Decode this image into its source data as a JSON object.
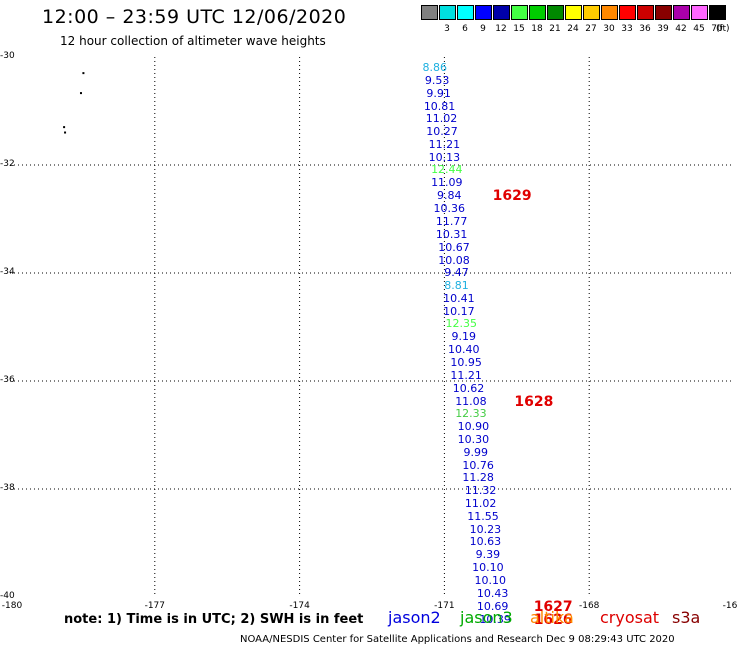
{
  "header": {
    "title": "12:00 – 23:59 UTC 12/06/2020",
    "subtitle": "12 hour collection of altimeter wave heights"
  },
  "color_scale": {
    "unit": "(ft)",
    "items": [
      {
        "label": "",
        "color": "#808080"
      },
      {
        "label": "3",
        "color": "#00e0e0"
      },
      {
        "label": "6",
        "color": "#00ffff"
      },
      {
        "label": "9",
        "color": "#0000ff"
      },
      {
        "label": "12",
        "color": "#0000aa"
      },
      {
        "label": "15",
        "color": "#44ff44"
      },
      {
        "label": "18",
        "color": "#00cc00"
      },
      {
        "label": "21",
        "color": "#008800"
      },
      {
        "label": "24",
        "color": "#ffff00"
      },
      {
        "label": "27",
        "color": "#ffcc00"
      },
      {
        "label": "30",
        "color": "#ff8800"
      },
      {
        "label": "33",
        "color": "#ff0000"
      },
      {
        "label": "36",
        "color": "#cc0000"
      },
      {
        "label": "39",
        "color": "#880000"
      },
      {
        "label": "42",
        "color": "#aa00aa"
      },
      {
        "label": "45",
        "color": "#ff66ff"
      },
      {
        "label": "70",
        "color": "#000000"
      }
    ]
  },
  "map": {
    "lat_range": [
      -40,
      -30
    ],
    "lon_range": [
      -180,
      -165
    ],
    "lat_ticks": [
      "-30",
      "-32",
      "-34",
      "-36",
      "-38",
      "-40"
    ],
    "lon_ticks": [
      "-180",
      "-177",
      "-174",
      "-171",
      "-168",
      "-16"
    ],
    "points": [
      {
        "lat": -30.2,
        "lon": -171.2,
        "value": "8.86",
        "color": "#1fb0e0"
      },
      {
        "lat": -30.44,
        "lon": -171.15,
        "value": "9.53",
        "color": "#0000cc"
      },
      {
        "lat": -30.68,
        "lon": -171.12,
        "value": "9.91",
        "color": "#0000cc"
      },
      {
        "lat": -30.92,
        "lon": -171.1,
        "value": "10.81",
        "color": "#0000cc"
      },
      {
        "lat": -31.15,
        "lon": -171.06,
        "value": "11.02",
        "color": "#0000cc"
      },
      {
        "lat": -31.39,
        "lon": -171.05,
        "value": "10.27",
        "color": "#0000cc"
      },
      {
        "lat": -31.63,
        "lon": -171.0,
        "value": "11.21",
        "color": "#0000cc"
      },
      {
        "lat": -31.87,
        "lon": -171.0,
        "value": "10.13",
        "color": "#0000cc"
      },
      {
        "lat": -32.1,
        "lon": -170.95,
        "value": "12.44",
        "color": "#44ff44"
      },
      {
        "lat": -32.34,
        "lon": -170.95,
        "value": "11.09",
        "color": "#0000cc"
      },
      {
        "lat": -32.58,
        "lon": -170.9,
        "value": "9.84",
        "color": "#0000cc"
      },
      {
        "lat": -32.82,
        "lon": -170.9,
        "value": "10.36",
        "color": "#0000cc"
      },
      {
        "lat": -33.05,
        "lon": -170.85,
        "value": "11.77",
        "color": "#0000cc"
      },
      {
        "lat": -33.29,
        "lon": -170.85,
        "value": "10.31",
        "color": "#0000cc"
      },
      {
        "lat": -33.53,
        "lon": -170.8,
        "value": "10.67",
        "color": "#0000cc"
      },
      {
        "lat": -33.77,
        "lon": -170.8,
        "value": "10.08",
        "color": "#0000cc"
      },
      {
        "lat": -34.0,
        "lon": -170.75,
        "value": "9.47",
        "color": "#0000cc"
      },
      {
        "lat": -34.24,
        "lon": -170.75,
        "value": "8.81",
        "color": "#1fb0e0"
      },
      {
        "lat": -34.48,
        "lon": -170.7,
        "value": "10.41",
        "color": "#0000cc"
      },
      {
        "lat": -34.72,
        "lon": -170.7,
        "value": "10.17",
        "color": "#0000cc"
      },
      {
        "lat": -34.95,
        "lon": -170.65,
        "value": "12.35",
        "color": "#44ff44"
      },
      {
        "lat": -35.19,
        "lon": -170.6,
        "value": "9.19",
        "color": "#0000cc"
      },
      {
        "lat": -35.43,
        "lon": -170.6,
        "value": "10.40",
        "color": "#0000cc"
      },
      {
        "lat": -35.67,
        "lon": -170.55,
        "value": "10.95",
        "color": "#0000cc"
      },
      {
        "lat": -35.9,
        "lon": -170.55,
        "value": "11.21",
        "color": "#0000cc"
      },
      {
        "lat": -36.14,
        "lon": -170.5,
        "value": "10.62",
        "color": "#0000cc"
      },
      {
        "lat": -36.38,
        "lon": -170.45,
        "value": "11.08",
        "color": "#0000cc"
      },
      {
        "lat": -36.62,
        "lon": -170.45,
        "value": "12.33",
        "color": "#44cc44"
      },
      {
        "lat": -36.85,
        "lon": -170.4,
        "value": "10.90",
        "color": "#0000cc"
      },
      {
        "lat": -37.09,
        "lon": -170.4,
        "value": "10.30",
        "color": "#0000cc"
      },
      {
        "lat": -37.33,
        "lon": -170.35,
        "value": "9.99",
        "color": "#0000cc"
      },
      {
        "lat": -37.57,
        "lon": -170.3,
        "value": "10.76",
        "color": "#0000cc"
      },
      {
        "lat": -37.8,
        "lon": -170.3,
        "value": "11.28",
        "color": "#0000cc"
      },
      {
        "lat": -38.04,
        "lon": -170.25,
        "value": "11.32",
        "color": "#0000cc"
      },
      {
        "lat": -38.28,
        "lon": -170.25,
        "value": "11.02",
        "color": "#0000cc"
      },
      {
        "lat": -38.52,
        "lon": -170.2,
        "value": "11.55",
        "color": "#0000cc"
      },
      {
        "lat": -38.75,
        "lon": -170.15,
        "value": "10.23",
        "color": "#0000cc"
      },
      {
        "lat": -38.99,
        "lon": -170.15,
        "value": "10.63",
        "color": "#0000cc"
      },
      {
        "lat": -39.23,
        "lon": -170.1,
        "value": "9.39",
        "color": "#0000cc"
      },
      {
        "lat": -39.47,
        "lon": -170.1,
        "value": "10.10",
        "color": "#0000cc"
      },
      {
        "lat": -39.7,
        "lon": -170.05,
        "value": "10.10",
        "color": "#0000cc"
      },
      {
        "lat": -39.94,
        "lon": -170.0,
        "value": "10.43",
        "color": "#0000cc"
      },
      {
        "lat": -40.18,
        "lon": -170.0,
        "value": "10.69",
        "color": "#0000cc"
      },
      {
        "lat": -40.42,
        "lon": -169.95,
        "value": "10.39",
        "color": "#0000cc"
      }
    ],
    "pass_labels": [
      {
        "lat": -32.58,
        "lon": -170.0,
        "text": "1629"
      },
      {
        "lat": -36.38,
        "lon": -169.55,
        "text": "1628"
      },
      {
        "lat": -40.18,
        "lon": -169.15,
        "text": "1627"
      },
      {
        "lat": -40.42,
        "lon": -169.15,
        "text": "1626"
      }
    ],
    "islands": [
      {
        "lat": -30.28,
        "lon": -178.5
      },
      {
        "lat": -30.65,
        "lon": -178.55
      },
      {
        "lat": -31.28,
        "lon": -178.9
      },
      {
        "lat": -31.38,
        "lon": -178.88
      }
    ]
  },
  "note": "note:  1) Time is in UTC;  2) SWH is in feet",
  "legend": [
    {
      "label": "jason2",
      "color": "#0000dd"
    },
    {
      "label": "jason3",
      "color": "#00aa00"
    },
    {
      "label": "altika",
      "color": "#ff8800"
    },
    {
      "label": "cryosat",
      "color": "#dd0000"
    },
    {
      "label": "s3a",
      "color": "#880000"
    }
  ],
  "footer": "NOAA/NESDIS Center for Satellite Applications and Research    Dec  9 08:29:43 UTC 2020"
}
